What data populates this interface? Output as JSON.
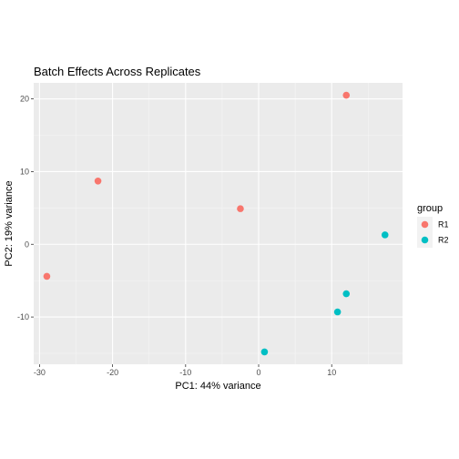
{
  "chart_data": {
    "type": "scatter",
    "title": "Batch Effects Across Replicates",
    "xlabel": "PC1: 44% variance",
    "ylabel": "PC2: 19% variance",
    "xlim": [
      -30.8,
      19.7
    ],
    "ylim": [
      -16.5,
      22.2
    ],
    "xticks": [
      -30,
      -20,
      -10,
      0,
      10
    ],
    "yticks": [
      -10,
      0,
      10,
      20
    ],
    "background": "#ebebeb",
    "grid": true,
    "legend": {
      "title": "group",
      "position": "right"
    },
    "series": [
      {
        "name": "R1",
        "color": "#f8766d",
        "points": [
          {
            "x": -29.0,
            "y": -4.4
          },
          {
            "x": -22.0,
            "y": 8.7
          },
          {
            "x": -2.5,
            "y": 4.9
          },
          {
            "x": 12.0,
            "y": 20.5
          }
        ]
      },
      {
        "name": "R2",
        "color": "#00bfc4",
        "points": [
          {
            "x": 17.3,
            "y": 1.3
          },
          {
            "x": 12.0,
            "y": -6.8
          },
          {
            "x": 10.8,
            "y": -9.3
          },
          {
            "x": 0.8,
            "y": -14.8
          }
        ]
      }
    ]
  }
}
